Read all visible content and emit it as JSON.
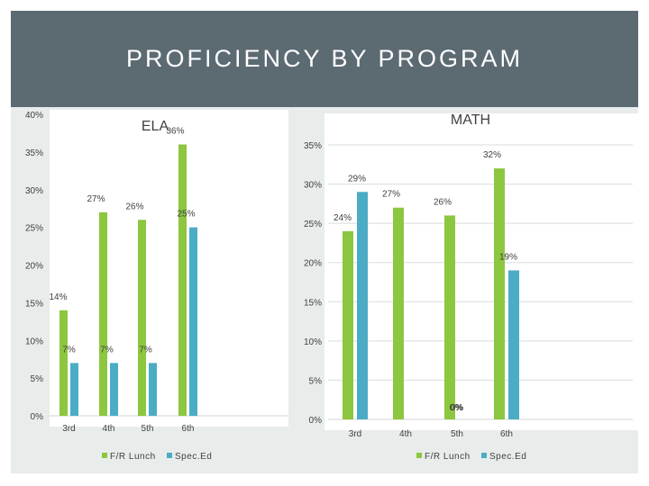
{
  "page": {
    "title": "PROFICIENCY BY PROGRAM"
  },
  "colors": {
    "frlunch": "#8dc63f",
    "sped": "#4bacc6",
    "gridline": "#d9dedd",
    "text": "#404040"
  },
  "chart_data": [
    {
      "type": "bar",
      "title": "ELA",
      "categories": [
        "3rd",
        "4th",
        "5th",
        "6th"
      ],
      "series": [
        {
          "name": "F/R Lunch",
          "values": [
            14,
            27,
            26,
            36
          ],
          "labels": [
            "14%",
            "27%",
            "26%",
            "36%"
          ]
        },
        {
          "name": "Spec.Ed",
          "values": [
            7,
            7,
            7,
            25
          ],
          "labels": [
            "7%",
            "7%",
            "7%",
            "25%"
          ]
        }
      ],
      "ylim": [
        0,
        40
      ],
      "yticks": [
        "0%",
        "5%",
        "10%",
        "15%",
        "20%",
        "25%",
        "30%",
        "35%",
        "40%"
      ],
      "xlabel": "",
      "ylabel": "",
      "legend": "bottom",
      "grid": false
    },
    {
      "type": "bar",
      "title": "MATH",
      "categories": [
        "3rd",
        "4th",
        "5th",
        "6th"
      ],
      "series": [
        {
          "name": "F/R Lunch",
          "values": [
            24,
            27,
            26,
            32
          ],
          "labels": [
            "24%",
            "27%",
            "26%",
            "32%"
          ]
        },
        {
          "name": "Spec.Ed",
          "values": [
            29,
            0,
            0,
            19
          ],
          "labels": [
            "29%",
            "0%",
            "0%",
            "19%"
          ]
        }
      ],
      "ylim": [
        0,
        35
      ],
      "yticks": [
        "0%",
        "5%",
        "10%",
        "15%",
        "20%",
        "25%",
        "30%",
        "35%"
      ],
      "xlabel": "",
      "ylabel": "",
      "legend": "bottom",
      "grid": true
    }
  ]
}
